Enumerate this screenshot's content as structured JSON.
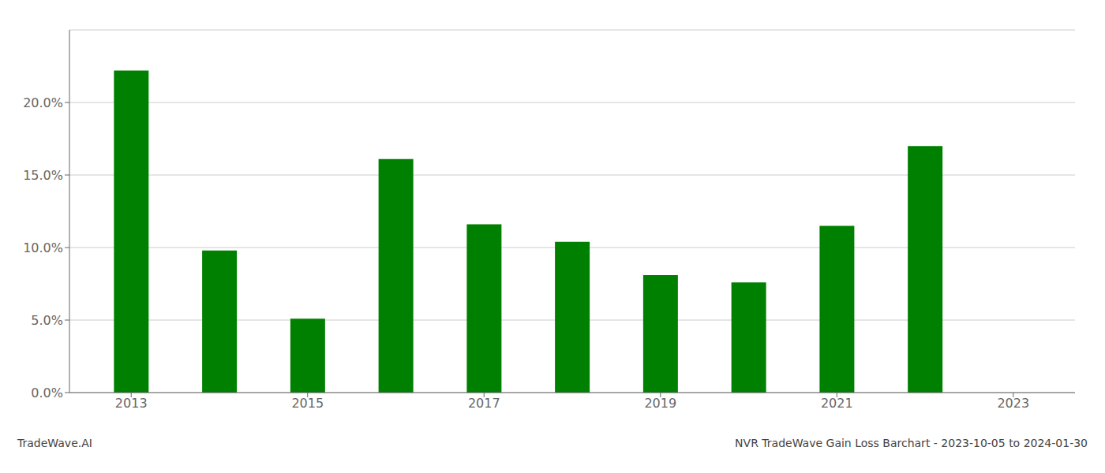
{
  "chart_data": {
    "type": "bar",
    "title": "NVR TradeWave Gain Loss Barchart - 2023-10-05 to 2024-01-30",
    "annotations": [
      "TradeWave.AI"
    ],
    "x": [
      2013,
      2014,
      2015,
      2016,
      2017,
      2018,
      2019,
      2020,
      2021,
      2022
    ],
    "values": [
      0.222,
      0.098,
      0.051,
      0.161,
      0.116,
      0.104,
      0.081,
      0.076,
      0.115,
      0.17
    ],
    "color": "#008000",
    "xlim": [
      2012.3,
      2023.7
    ],
    "xticks": [
      2013,
      2015,
      2017,
      2019,
      2021,
      2023
    ],
    "ylim": [
      0,
      0.25
    ],
    "yticks": [
      {
        "value": 0.0,
        "label": "0.0%"
      },
      {
        "value": 0.05,
        "label": "5.0%"
      },
      {
        "value": 0.1,
        "label": "10.0%"
      },
      {
        "value": 0.15,
        "label": "15.0%"
      },
      {
        "value": 0.2,
        "label": "20.0%"
      }
    ],
    "grid": true
  }
}
